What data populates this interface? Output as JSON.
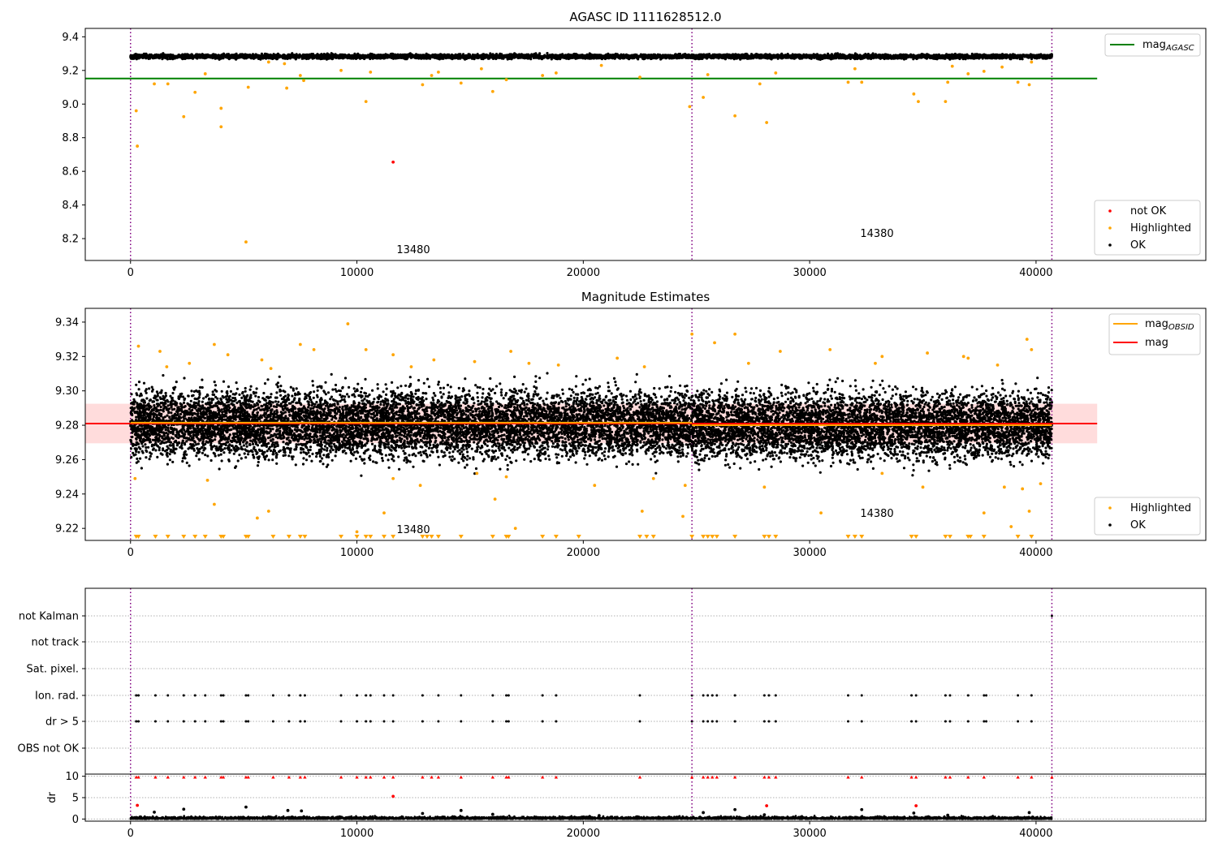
{
  "colors": {
    "ok": "#000000",
    "highlighted": "#ffa500",
    "not_ok": "#ff0000",
    "agasc_line": "#008000",
    "mag_line": "#ff0000",
    "mag_obsid_line": "#ffa500",
    "obsid_boundary": "#800080",
    "band": "#ffc0c0",
    "grid": "#b0b0b0"
  },
  "chart_data": [
    {
      "type": "scatter",
      "title": "AGASC ID 1111628512.0",
      "xlim": [
        -2000,
        47500
      ],
      "ylim": [
        8.07,
        9.45
      ],
      "x_ticks": [
        0,
        10000,
        20000,
        30000,
        40000
      ],
      "y_ticks": [
        8.2,
        8.4,
        8.6,
        8.8,
        9.0,
        9.2,
        9.4
      ],
      "obsid_boundaries": [
        0,
        24800,
        40700
      ],
      "reference_lines": [
        {
          "name": "mag_AGASC",
          "y": 9.152,
          "x_range": [
            -2000,
            42700
          ]
        }
      ],
      "annotations": [
        {
          "text": "13480",
          "x": 11600,
          "y": 8.12
        },
        {
          "text": "14380",
          "x": 32000,
          "y": 8.22
        }
      ],
      "ok_band": [
        {
          "x_range": [
            0,
            24800
          ],
          "y_center": 9.283,
          "y_spread": 0.014
        },
        {
          "x_range": [
            24800,
            40700
          ],
          "y_center": 9.283,
          "y_spread": 0.014
        }
      ],
      "series": [
        {
          "name": "not OK",
          "color": "#ff0000",
          "points": [
            [
              11600,
              8.655
            ]
          ]
        },
        {
          "name": "Highlighted",
          "color": "#ffa500",
          "points": [
            [
              250,
              8.96
            ],
            [
              300,
              8.75
            ],
            [
              1050,
              9.12
            ],
            [
              1650,
              9.12
            ],
            [
              2350,
              8.925
            ],
            [
              2850,
              9.07
            ],
            [
              3300,
              9.18
            ],
            [
              4000,
              8.975
            ],
            [
              4000,
              8.865
            ],
            [
              5100,
              8.18
            ],
            [
              5200,
              9.1
            ],
            [
              6100,
              9.25
            ],
            [
              6800,
              9.24
            ],
            [
              6900,
              9.095
            ],
            [
              7500,
              9.17
            ],
            [
              7650,
              9.14
            ],
            [
              9300,
              9.2
            ],
            [
              10400,
              9.015
            ],
            [
              10600,
              9.19
            ],
            [
              12900,
              9.115
            ],
            [
              13300,
              9.17
            ],
            [
              13600,
              9.19
            ],
            [
              14600,
              9.125
            ],
            [
              15500,
              9.21
            ],
            [
              16000,
              9.075
            ],
            [
              16600,
              9.145
            ],
            [
              18200,
              9.17
            ],
            [
              18800,
              9.185
            ],
            [
              20800,
              9.23
            ],
            [
              22500,
              9.16
            ],
            [
              24700,
              8.985
            ],
            [
              25300,
              9.04
            ],
            [
              25500,
              9.175
            ],
            [
              26700,
              8.93
            ],
            [
              28100,
              8.89
            ],
            [
              27800,
              9.12
            ],
            [
              28500,
              9.185
            ],
            [
              31700,
              9.13
            ],
            [
              32000,
              9.21
            ],
            [
              32300,
              9.13
            ],
            [
              34600,
              9.06
            ],
            [
              34800,
              9.015
            ],
            [
              36000,
              9.015
            ],
            [
              36100,
              9.13
            ],
            [
              36300,
              9.225
            ],
            [
              37000,
              9.18
            ],
            [
              37700,
              9.195
            ],
            [
              38500,
              9.22
            ],
            [
              39200,
              9.13
            ],
            [
              39700,
              9.115
            ],
            [
              39800,
              9.25
            ]
          ]
        }
      ],
      "legend": {
        "lines": [
          "mag_AGASC"
        ],
        "markers": [
          "not OK",
          "Highlighted",
          "OK"
        ]
      }
    },
    {
      "type": "scatter",
      "title": "Magnitude Estimates",
      "xlim": [
        -2000,
        47500
      ],
      "ylim": [
        9.213,
        9.348
      ],
      "x_ticks": [
        0,
        10000,
        20000,
        30000,
        40000
      ],
      "y_ticks": [
        9.22,
        9.24,
        9.26,
        9.28,
        9.3,
        9.32,
        9.34
      ],
      "obsid_boundaries": [
        0,
        24800,
        40700
      ],
      "band": {
        "y_range": [
          9.2695,
          9.2925
        ],
        "x_range": [
          -2000,
          42700
        ]
      },
      "reference_lines": [
        {
          "name": "mag",
          "y": 9.281,
          "x_range": [
            -2000,
            42700
          ]
        },
        {
          "name": "mag_OBSID",
          "segments": [
            {
              "x_range": [
                0,
                24800
              ],
              "y": 9.2815
            },
            {
              "x_range": [
                24800,
                40700
              ],
              "y": 9.28
            }
          ]
        }
      ],
      "annotations": [
        {
          "text": "13480",
          "x": 11600,
          "y": 9.218
        },
        {
          "text": "14380",
          "x": 32000,
          "y": 9.228
        }
      ],
      "ok_band": [
        {
          "x_range": [
            0,
            24800
          ],
          "y_center": 9.281,
          "y_spread": 0.021
        },
        {
          "x_range": [
            24800,
            40700
          ],
          "y_center": 9.28,
          "y_spread": 0.021
        }
      ],
      "series": [
        {
          "name": "Highlighted",
          "color": "#ffa500",
          "points": [
            [
              9600,
              9.339
            ],
            [
              26700,
              9.333
            ],
            [
              24800,
              9.333
            ],
            [
              39600,
              9.33
            ],
            [
              3700,
              9.327
            ],
            [
              7500,
              9.327
            ],
            [
              350,
              9.326
            ],
            [
              10400,
              9.324
            ],
            [
              1300,
              9.323
            ],
            [
              8100,
              9.324
            ],
            [
              16800,
              9.323
            ],
            [
              28700,
              9.323
            ],
            [
              39800,
              9.324
            ],
            [
              4300,
              9.321
            ],
            [
              11600,
              9.321
            ],
            [
              5800,
              9.318
            ],
            [
              21500,
              9.319
            ],
            [
              33200,
              9.32
            ],
            [
              35200,
              9.322
            ],
            [
              25800,
              9.328
            ],
            [
              13400,
              9.318
            ],
            [
              17600,
              9.316
            ],
            [
              2600,
              9.316
            ],
            [
              30900,
              9.324
            ],
            [
              37000,
              9.319
            ],
            [
              1600,
              9.314
            ],
            [
              15200,
              9.317
            ],
            [
              22700,
              9.314
            ],
            [
              32900,
              9.316
            ],
            [
              18900,
              9.315
            ],
            [
              12400,
              9.314
            ],
            [
              6200,
              9.313
            ],
            [
              27300,
              9.316
            ],
            [
              36800,
              9.32
            ],
            [
              38300,
              9.315
            ],
            [
              200,
              9.249
            ],
            [
              3400,
              9.248
            ],
            [
              3700,
              9.234
            ],
            [
              5600,
              9.226
            ],
            [
              6100,
              9.23
            ],
            [
              10000,
              9.218
            ],
            [
              11200,
              9.229
            ],
            [
              11600,
              9.249
            ],
            [
              12800,
              9.245
            ],
            [
              15300,
              9.252
            ],
            [
              16100,
              9.237
            ],
            [
              16600,
              9.25
            ],
            [
              17000,
              9.22
            ],
            [
              20500,
              9.245
            ],
            [
              22600,
              9.23
            ],
            [
              23100,
              9.249
            ],
            [
              24400,
              9.227
            ],
            [
              24500,
              9.245
            ],
            [
              28000,
              9.244
            ],
            [
              30500,
              9.229
            ],
            [
              33200,
              9.252
            ],
            [
              35000,
              9.244
            ],
            [
              37700,
              9.229
            ],
            [
              38600,
              9.244
            ],
            [
              39400,
              9.243
            ],
            [
              39700,
              9.23
            ],
            [
              40200,
              9.246
            ],
            [
              38900,
              9.221
            ]
          ]
        },
        {
          "name": "Highlighted (clipped below)",
          "color": "#ffa500",
          "x": [
            250,
            350,
            1100,
            1650,
            2350,
            2850,
            3300,
            4000,
            4100,
            5100,
            5200,
            6300,
            7000,
            7500,
            7700,
            9300,
            10000,
            10400,
            10600,
            11200,
            11600,
            12900,
            13100,
            13300,
            13600,
            14600,
            16000,
            16600,
            16700,
            18200,
            18800,
            19800,
            22500,
            22800,
            23100,
            24800,
            25300,
            25500,
            25700,
            25900,
            26700,
            28000,
            28200,
            28500,
            31700,
            32000,
            32300,
            34500,
            34700,
            36000,
            36200,
            37000,
            37100,
            37700,
            39200,
            39800
          ]
        }
      ],
      "legend": {
        "lines": [
          "mag_OBSID",
          "mag"
        ],
        "markers": [
          "Highlighted",
          "OK"
        ]
      }
    },
    {
      "type": "scatter",
      "title": "",
      "xlim": [
        -2000,
        47500
      ],
      "x_ticks": [
        0,
        10000,
        20000,
        30000,
        40000
      ],
      "categories": [
        "not Kalman",
        "not track",
        "Sat. pixel.",
        "Ion. rad.",
        "dr > 5",
        "OBS not OK"
      ],
      "obsid_boundaries": [
        0,
        24800,
        40700
      ],
      "flag_events": {
        "not Kalman": [
          40700
        ],
        "not track": [],
        "Sat. pixel.": [],
        "Ion. rad.": [
          250,
          350,
          1100,
          1650,
          2350,
          2850,
          3300,
          4000,
          4100,
          5100,
          5200,
          6300,
          7000,
          7500,
          7700,
          9300,
          10000,
          10400,
          10600,
          11200,
          11600,
          12900,
          13600,
          14600,
          16000,
          16600,
          16700,
          18200,
          18800,
          22500,
          24800,
          25300,
          25500,
          25700,
          25900,
          26700,
          28000,
          28200,
          28500,
          31700,
          32300,
          34500,
          34700,
          36000,
          36200,
          37000,
          37700,
          37800,
          39200,
          39800
        ],
        "dr > 5": [
          250,
          350,
          1100,
          1650,
          2350,
          2850,
          3300,
          4000,
          4100,
          5100,
          5200,
          6300,
          7000,
          7500,
          7700,
          9300,
          10000,
          10400,
          10600,
          11200,
          11600,
          12900,
          13600,
          14600,
          16000,
          16600,
          16700,
          18200,
          18800,
          22500,
          24800,
          25300,
          25500,
          25700,
          25900,
          26700,
          28000,
          28200,
          28500,
          31700,
          32300,
          34500,
          34700,
          36000,
          36200,
          37000,
          37700,
          37800,
          39200,
          39800
        ],
        "OBS not OK": []
      }
    },
    {
      "type": "scatter",
      "title": "",
      "ylabel": "dr",
      "xlim": [
        -2000,
        47500
      ],
      "ylim": [
        -0.5,
        10.5
      ],
      "x_ticks": [
        0,
        10000,
        20000,
        30000,
        40000
      ],
      "y_ticks": [
        0,
        5,
        10
      ],
      "obsid_boundaries": [
        0,
        24800,
        40700
      ],
      "clip_marker_y": 9.8,
      "series": [
        {
          "name": "dr",
          "color": "#000000",
          "points": [
            [
              1050,
              1.6
            ],
            [
              2350,
              2.3
            ],
            [
              5100,
              2.8
            ],
            [
              6950,
              2.0
            ],
            [
              7550,
              1.9
            ],
            [
              12900,
              1.3
            ],
            [
              14600,
              2.0
            ],
            [
              16000,
              1.1
            ],
            [
              20700,
              0.8
            ],
            [
              25300,
              1.5
            ],
            [
              26700,
              2.2
            ],
            [
              28000,
              1.0
            ],
            [
              32300,
              2.2
            ],
            [
              34600,
              1.4
            ],
            [
              36100,
              0.9
            ],
            [
              39700,
              1.5
            ]
          ]
        },
        {
          "name": "dr highlighted",
          "color": "#ff0000",
          "points": [
            [
              300,
              3.2
            ],
            [
              11600,
              5.3
            ],
            [
              28100,
              3.1
            ],
            [
              34700,
              3.1
            ]
          ]
        },
        {
          "name": "dr clipped",
          "color": "#ff0000",
          "x": [
            250,
            350,
            1100,
            1650,
            2350,
            2850,
            3300,
            4000,
            4100,
            5100,
            5200,
            6300,
            7000,
            7500,
            7700,
            9300,
            10000,
            10400,
            10600,
            11200,
            11600,
            12900,
            13300,
            13600,
            14600,
            16000,
            16600,
            16700,
            18200,
            18800,
            22500,
            24800,
            25300,
            25500,
            25700,
            25900,
            26700,
            28000,
            28200,
            28500,
            31700,
            32300,
            34500,
            34700,
            36000,
            36200,
            37000,
            37700,
            39200,
            39800,
            40700
          ]
        }
      ]
    }
  ],
  "legends": {
    "agasc": {
      "mag_agasc_main": "mag",
      "mag_agasc_sub": "AGASC",
      "not_ok": "not OK",
      "highlighted": "Highlighted",
      "ok": "OK"
    },
    "estimates": {
      "mag_obsid_main": "mag",
      "mag_obsid_sub": "OBSID",
      "mag": "mag",
      "highlighted": "Highlighted",
      "ok": "OK"
    }
  }
}
